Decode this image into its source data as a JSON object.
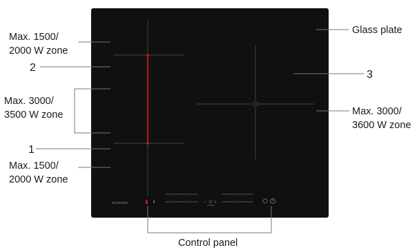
{
  "labels": {
    "glass_plate": "Glass plate",
    "zone_top_left_line1": "Max. 1500/",
    "zone_top_left_line2": "2000 W zone",
    "num_2": "2",
    "zone_mid_left_line1": "Max. 3000/",
    "zone_mid_left_line2": "3500 W zone",
    "num_1": "1",
    "zone_bottom_left_line1": "Max. 1500/",
    "zone_bottom_left_line2": "2000 W zone",
    "num_3": "3",
    "zone_right_line1": "Max. 3000/",
    "zone_right_line2": "3600 W zone",
    "control_panel": "Control panel"
  },
  "hob": {
    "brand": "ROSIERES",
    "surface_color": "#101010",
    "accent_color": "#c0181e"
  }
}
